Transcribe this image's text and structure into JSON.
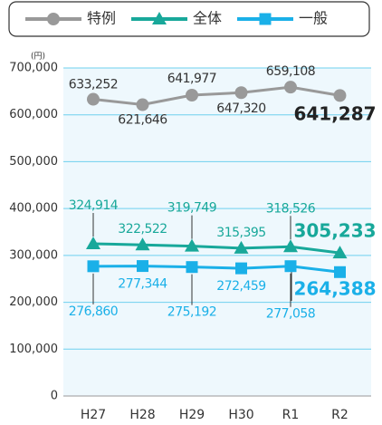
{
  "chart_data": {
    "type": "line",
    "y_unit": "(円)",
    "categories": [
      "H27",
      "H28",
      "H29",
      "H30",
      "R1",
      "R2"
    ],
    "series": [
      {
        "name": "特例",
        "color": "#999999",
        "marker": "circle",
        "values": [
          633252,
          621646,
          641977,
          647320,
          659108,
          641287
        ],
        "value_labels": [
          "633,252",
          "621,646",
          "641,977",
          "647,320",
          "659,108",
          "641,287"
        ]
      },
      {
        "name": "全体",
        "color": "#18a89a",
        "marker": "triangle",
        "values": [
          324914,
          322522,
          319749,
          315395,
          318526,
          305233
        ],
        "value_labels": [
          "324,914",
          "322,522",
          "319,749",
          "315,395",
          "318,526",
          "305,233"
        ]
      },
      {
        "name": "一般",
        "color": "#1ab0e8",
        "marker": "square",
        "values": [
          276860,
          277344,
          275192,
          272459,
          277058,
          264388
        ],
        "value_labels": [
          "276,860",
          "277,344",
          "275,192",
          "272,459",
          "277,058",
          "264,388"
        ]
      }
    ],
    "ylim": [
      0,
      700000
    ],
    "yticks": [
      0,
      {
        "value": 100000,
        "label": "100,000"
      },
      {
        "value": 200000,
        "label": "200,000"
      },
      {
        "value": 300000,
        "label": "300,000"
      },
      {
        "value": 400000,
        "label": "400,000"
      },
      {
        "value": 500000,
        "label": "500,000"
      },
      {
        "value": 600000,
        "label": "600,000"
      },
      {
        "value": 700000,
        "label": "700,000"
      }
    ],
    "grid": true,
    "legend": "top"
  }
}
